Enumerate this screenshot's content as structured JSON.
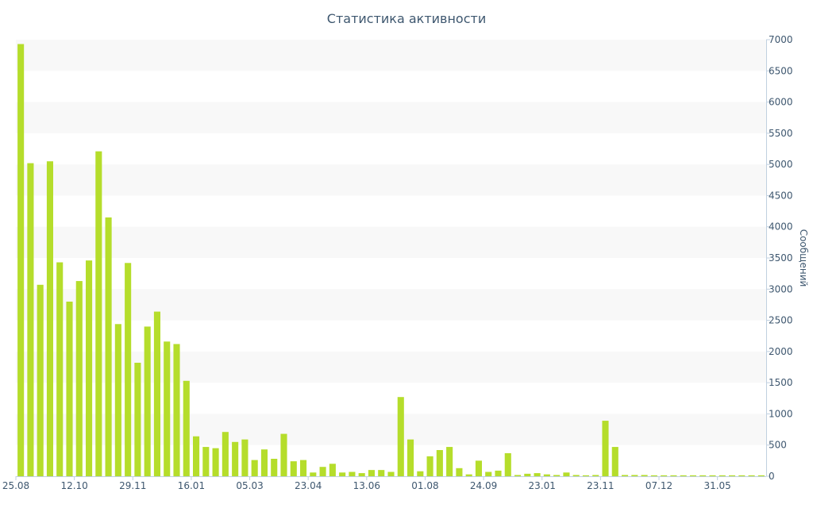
{
  "chart_data": {
    "type": "bar",
    "title": "Статистика активности",
    "ylabel": "Сообщений",
    "y_axis_side": "right",
    "ylim": [
      0,
      7000
    ],
    "y_ticks": [
      0,
      500,
      1000,
      1500,
      2000,
      2500,
      3000,
      3500,
      4000,
      4500,
      5000,
      5500,
      6000,
      6500,
      7000
    ],
    "x_tick_labels": [
      "25.08",
      "12.10",
      "29.11",
      "16.01",
      "05.03",
      "23.04",
      "13.06",
      "01.08",
      "24.09",
      "23.01",
      "23.11",
      "07.12",
      "31.05"
    ],
    "x_tick_bar_index": [
      0,
      6,
      12,
      18,
      24,
      30,
      36,
      42,
      48,
      54,
      60,
      66,
      72
    ],
    "bar_color": "#b5dd2b",
    "band_color": "#f8f8f8",
    "grid": true,
    "values": [
      6930,
      5020,
      3070,
      5050,
      3430,
      2800,
      3130,
      3460,
      5210,
      4150,
      2440,
      3420,
      1820,
      2400,
      2640,
      2160,
      2120,
      1530,
      640,
      470,
      450,
      710,
      550,
      590,
      260,
      430,
      280,
      680,
      240,
      260,
      60,
      150,
      200,
      60,
      70,
      50,
      100,
      100,
      70,
      1270,
      590,
      80,
      320,
      420,
      470,
      130,
      30,
      250,
      70,
      90,
      370,
      20,
      40,
      50,
      30,
      20,
      60,
      20,
      15,
      20,
      890,
      470,
      20,
      20,
      20,
      15,
      15,
      15,
      15,
      15,
      15,
      15,
      15,
      15,
      15,
      15,
      15
    ]
  }
}
